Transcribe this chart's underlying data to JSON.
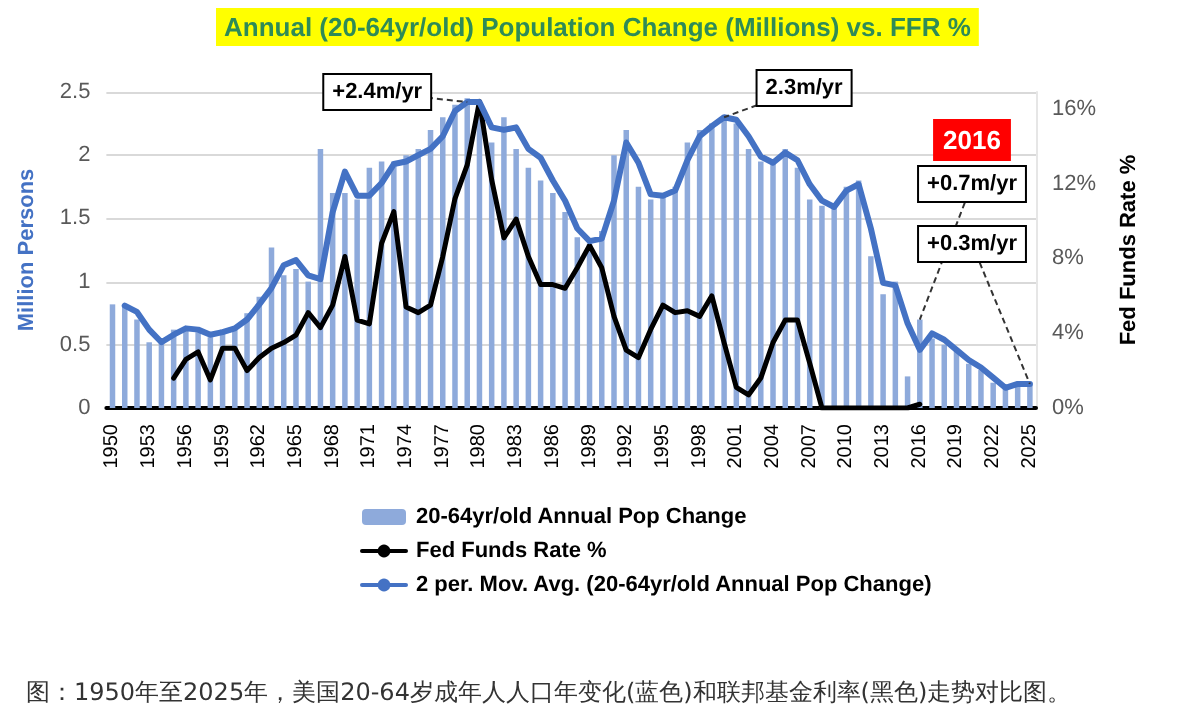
{
  "chart_data": {
    "type": "bar",
    "title": "Annual (20-64yr/old) Population Change (Millions) vs. FFR %",
    "ylabel": "Million Persons",
    "y2label": "Fed Funds Rate %",
    "x": [
      1950,
      1951,
      1952,
      1953,
      1954,
      1955,
      1956,
      1957,
      1958,
      1959,
      1960,
      1961,
      1962,
      1963,
      1964,
      1965,
      1966,
      1967,
      1968,
      1969,
      1970,
      1971,
      1972,
      1973,
      1974,
      1975,
      1976,
      1977,
      1978,
      1979,
      1980,
      1981,
      1982,
      1983,
      1984,
      1985,
      1986,
      1987,
      1988,
      1989,
      1990,
      1991,
      1992,
      1993,
      1994,
      1995,
      1996,
      1997,
      1998,
      1999,
      2000,
      2001,
      2002,
      2003,
      2004,
      2005,
      2006,
      2007,
      2008,
      2009,
      2010,
      2011,
      2012,
      2013,
      2014,
      2015,
      2016,
      2017,
      2018,
      2019,
      2020,
      2021,
      2022,
      2023,
      2024,
      2025
    ],
    "series": [
      {
        "name": "20-64yr/old Annual Pop Change",
        "color": "#8eaadb",
        "values": [
          0.82,
          0.8,
          0.7,
          0.52,
          0.52,
          0.62,
          0.64,
          0.6,
          0.56,
          0.62,
          0.64,
          0.75,
          0.88,
          1.27,
          1.05,
          1.1,
          1.0,
          2.05,
          1.7,
          1.7,
          1.65,
          1.9,
          1.95,
          1.95,
          2.0,
          2.05,
          2.2,
          2.3,
          2.4,
          2.45,
          2.3,
          2.1,
          2.3,
          2.05,
          1.9,
          1.8,
          1.7,
          1.55,
          1.35,
          1.3,
          1.4,
          2.0,
          2.2,
          1.75,
          1.65,
          1.7,
          1.75,
          2.1,
          2.2,
          2.25,
          2.3,
          2.25,
          2.05,
          1.95,
          1.95,
          2.05,
          1.9,
          1.65,
          1.6,
          1.6,
          1.75,
          1.8,
          1.2,
          0.9,
          1.0,
          0.25,
          0.7,
          0.55,
          0.5,
          0.45,
          0.35,
          0.3,
          0.2,
          0.15,
          0.2,
          0.2
        ]
      },
      {
        "name": "Fed Funds Rate %",
        "type": "line",
        "axis": "y2",
        "color": "#000000",
        "values": [
          null,
          null,
          null,
          null,
          null,
          1.6,
          2.6,
          3.0,
          1.5,
          3.2,
          3.2,
          2.0,
          2.7,
          3.2,
          3.5,
          3.9,
          5.1,
          4.3,
          5.5,
          8.1,
          4.7,
          4.5,
          8.8,
          10.5,
          5.4,
          5.1,
          5.5,
          8.1,
          11.2,
          13.0,
          16.4,
          12.2,
          9.1,
          10.1,
          8.1,
          6.6,
          6.6,
          6.4,
          7.5,
          8.7,
          7.5,
          4.9,
          3.1,
          2.7,
          4.2,
          5.5,
          5.1,
          5.2,
          4.9,
          6.0,
          3.5,
          1.1,
          0.7,
          1.6,
          3.5,
          4.7,
          4.7,
          2.4,
          0,
          0,
          0,
          0,
          0,
          0,
          0,
          0,
          0.2,
          null,
          null,
          null,
          null,
          null,
          null,
          null,
          null,
          null
        ]
      },
      {
        "name": "2 per. Mov. Avg. (20-64yr/old Annual Pop Change)",
        "type": "line",
        "color": "#4472c4",
        "values": [
          null,
          0.81,
          0.76,
          0.62,
          0.52,
          0.58,
          0.63,
          0.62,
          0.58,
          0.6,
          0.63,
          0.7,
          0.82,
          0.95,
          1.13,
          1.17,
          1.05,
          1.02,
          1.55,
          1.87,
          1.68,
          1.68,
          1.78,
          1.93,
          1.95,
          2.0,
          2.05,
          2.15,
          2.35,
          2.42,
          2.42,
          2.22,
          2.2,
          2.22,
          2.05,
          1.98,
          1.8,
          1.64,
          1.42,
          1.32,
          1.34,
          1.64,
          2.1,
          1.94,
          1.69,
          1.68,
          1.72,
          1.96,
          2.15,
          2.23,
          2.3,
          2.28,
          2.15,
          1.99,
          1.94,
          2.02,
          1.96,
          1.77,
          1.64,
          1.59,
          1.72,
          1.77,
          1.42,
          0.99,
          0.97,
          0.67,
          0.46,
          0.59,
          0.54,
          0.46,
          0.38,
          0.32,
          0.24,
          0.16,
          0.19,
          0.19
        ]
      }
    ],
    "xlim": [
      1949.5,
      2025.5
    ],
    "xticks": [
      1950,
      1953,
      1956,
      1959,
      1962,
      1965,
      1968,
      1971,
      1974,
      1977,
      1980,
      1983,
      1986,
      1989,
      1992,
      1995,
      1998,
      2001,
      2004,
      2007,
      2010,
      2013,
      2016,
      2019,
      2022,
      2025
    ],
    "ylim": [
      0,
      2.5
    ],
    "yticks": [
      0,
      0.5,
      1,
      1.5,
      2,
      2.5
    ],
    "y2lim": [
      0,
      16.9
    ],
    "y2ticks": [
      {
        "value": 0,
        "label": "0%"
      },
      {
        "value": 4,
        "label": "4%"
      },
      {
        "value": 8,
        "label": "8%"
      },
      {
        "value": 12,
        "label": "12%"
      },
      {
        "value": 16,
        "label": "16%"
      }
    ],
    "grid": "y",
    "legend": "bottom",
    "marker": "none",
    "annotations": [
      {
        "text": "+2.4m/yr",
        "x": 1979,
        "y": 2.42
      },
      {
        "text": "2.3m/yr",
        "x": 2000,
        "y": 2.3
      },
      {
        "text": "2016",
        "x": 2016,
        "y": 0.7
      },
      {
        "text": "+0.7m/yr",
        "x": 2016,
        "y": 0.7
      },
      {
        "text": "+0.3m/yr",
        "x": 2025,
        "y": 0.19
      },
      "图：1950年至2025年，美国20-64岁成年人人口年变化(蓝色)和联邦基金利率(黑色)走势对比图。"
    ]
  }
}
